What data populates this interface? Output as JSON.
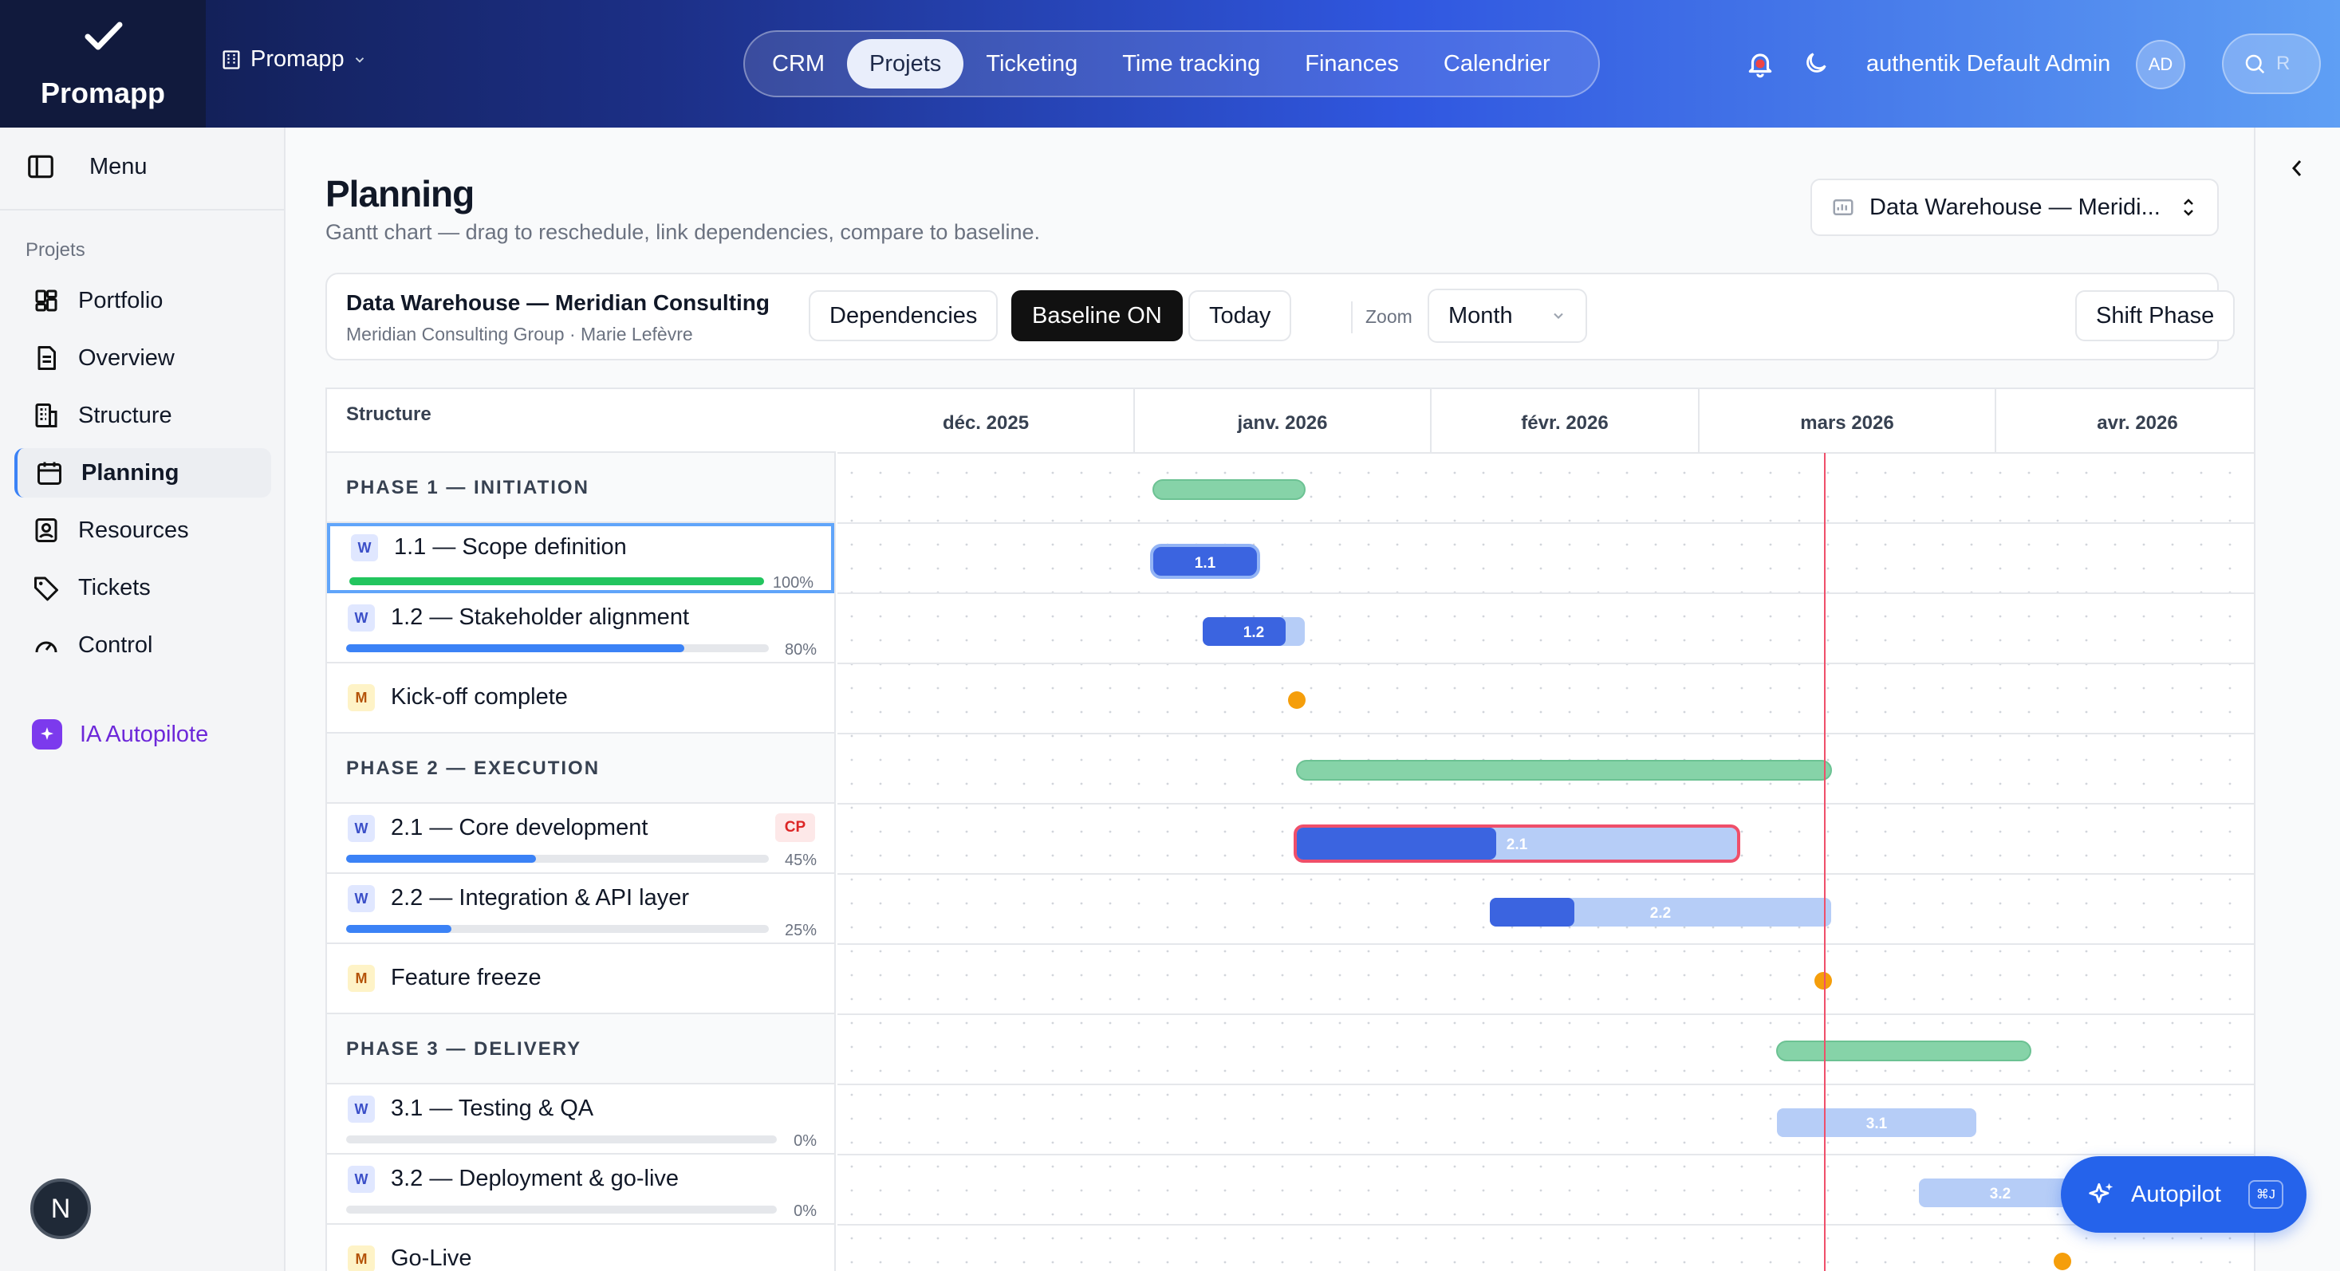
{
  "header": {
    "logo_text": "Promapp",
    "org_name": "Promapp",
    "nav_tabs": [
      "CRM",
      "Projets",
      "Ticketing",
      "Time tracking",
      "Finances",
      "Calendrier"
    ],
    "active_tab": "Projets",
    "user_name": "authentik Default Admin",
    "avatar_initials": "AD",
    "search_hint": "R",
    "icons": [
      "check-icon",
      "building-icon",
      "chevron-down-icon",
      "bell-icon",
      "moon-icon",
      "search-icon"
    ]
  },
  "sidebar": {
    "menu_label": "Menu",
    "section_label": "Projets",
    "items": [
      {
        "label": "Portfolio",
        "icon": "grid-icon"
      },
      {
        "label": "Overview",
        "icon": "document-icon"
      },
      {
        "label": "Structure",
        "icon": "building-icon"
      },
      {
        "label": "Planning",
        "icon": "calendar-icon",
        "active": true
      },
      {
        "label": "Resources",
        "icon": "user-badge-icon"
      },
      {
        "label": "Tickets",
        "icon": "tag-icon"
      },
      {
        "label": "Control",
        "icon": "gauge-icon"
      }
    ],
    "ai_label": "IA Autopilote",
    "bottom_initial": "N"
  },
  "page": {
    "title": "Planning",
    "subtitle": "Gantt chart — drag to reschedule, link dependencies, compare to baseline.",
    "project_selector": "Data Warehouse — Meridi..."
  },
  "toolbar": {
    "project_title": "Data Warehouse — Meridian Consulting",
    "project_sub": "Meridian Consulting Group · Marie Lefèvre",
    "dependencies_label": "Dependencies",
    "baseline_label": "Baseline ON",
    "today_label": "Today",
    "zoom_label": "Zoom",
    "zoom_value": "Month",
    "shift_label": "Shift Phase"
  },
  "gantt": {
    "structure_header": "Structure",
    "months": [
      "déc. 2025",
      "janv. 2026",
      "févr. 2026",
      "mars 2026",
      "avr. 2026"
    ],
    "rows": [
      {
        "type": "phase",
        "label": "PHASE 1 — INITIATION"
      },
      {
        "type": "work",
        "badge": "W",
        "label": "1.1 — Scope definition",
        "progress": 100,
        "pct_label": "100%",
        "bar_label": "1.1",
        "selected": true
      },
      {
        "type": "work",
        "badge": "W",
        "label": "1.2 — Stakeholder alignment",
        "progress": 80,
        "pct_label": "80%",
        "bar_label": "1.2"
      },
      {
        "type": "milestone",
        "badge": "M",
        "label": "Kick-off complete"
      },
      {
        "type": "phase",
        "label": "PHASE 2 — EXECUTION"
      },
      {
        "type": "work",
        "badge": "W",
        "label": "2.1 — Core development",
        "progress": 45,
        "pct_label": "45%",
        "bar_label": "2.1",
        "critical_label": "CP"
      },
      {
        "type": "work",
        "badge": "W",
        "label": "2.2 — Integration & API layer",
        "progress": 25,
        "pct_label": "25%",
        "bar_label": "2.2"
      },
      {
        "type": "milestone",
        "badge": "M",
        "label": "Feature freeze"
      },
      {
        "type": "phase",
        "label": "PHASE 3 — DELIVERY"
      },
      {
        "type": "work",
        "badge": "W",
        "label": "3.1 — Testing & QA",
        "progress": 0,
        "pct_label": "0%",
        "bar_label": "3.1"
      },
      {
        "type": "work",
        "badge": "W",
        "label": "3.2 — Deployment & go-live",
        "progress": 0,
        "pct_label": "0%",
        "bar_label": "3.2"
      },
      {
        "type": "milestone",
        "badge": "M",
        "label": "Go-Live"
      }
    ],
    "colors": {
      "phase_bar": "#86d3a8",
      "task_done": "#3b64e0",
      "task_remaining": "#b6cdf7",
      "milestone": "#f59e0b",
      "today_line": "#ef4f6a",
      "critical_outline": "#ef4f6a",
      "progress_complete": "#22c55e",
      "progress_partial": "#3b82f6"
    }
  },
  "autopilot": {
    "label": "Autopilot",
    "shortcut": "⌘J"
  }
}
